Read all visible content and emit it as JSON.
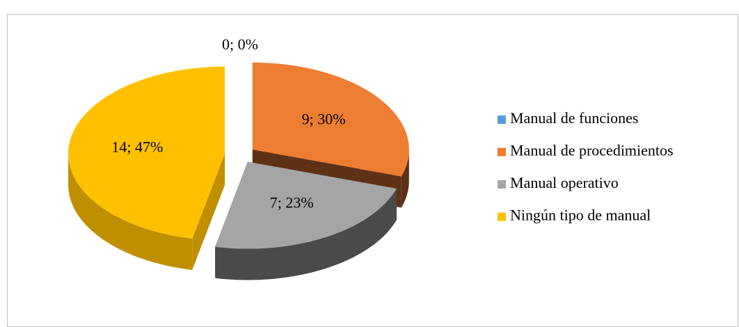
{
  "chart_data": {
    "type": "pie3d",
    "categories": [
      "Manual de funciones",
      "Manual de procedimientos",
      "Manual operativo",
      "Ningún tipo de manual"
    ],
    "values": [
      0,
      9,
      7,
      14
    ],
    "value_labels": [
      "0; 0%",
      "9; 30%",
      "7; 23%",
      "14; 47%"
    ],
    "colors": [
      "#5B9BD5",
      "#ED7D31",
      "#A5A5A5",
      "#FFC000"
    ],
    "side_colors": [
      "#2E5F8C",
      "#5E3115",
      "#4A4A4A",
      "#C08F00"
    ],
    "legend": "right"
  }
}
